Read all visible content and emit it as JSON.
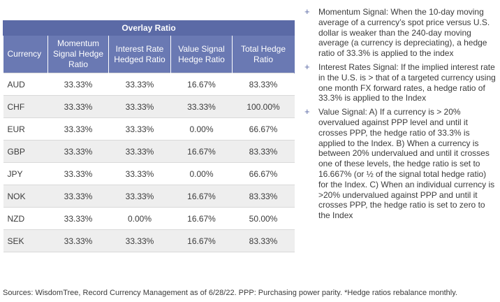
{
  "table": {
    "title": "Overlay Ratio",
    "headers": [
      "Currency",
      "Momentum Signal Hedge Ratio",
      "Interest Rate Hedged Ratio",
      "Value Signal Hedge Ratio",
      "Total Hedge Ratio"
    ],
    "rows": [
      [
        "AUD",
        "33.33%",
        "33.33%",
        "16.67%",
        "83.33%"
      ],
      [
        "CHF",
        "33.33%",
        "33.33%",
        "33.33%",
        "100.00%"
      ],
      [
        "EUR",
        "33.33%",
        "33.33%",
        "0.00%",
        "66.67%"
      ],
      [
        "GBP",
        "33.33%",
        "33.33%",
        "16.67%",
        "83.33%"
      ],
      [
        "JPY",
        "33.33%",
        "33.33%",
        "0.00%",
        "66.67%"
      ],
      [
        "NOK",
        "33.33%",
        "33.33%",
        "16.67%",
        "83.33%"
      ],
      [
        "NZD",
        "33.33%",
        "0.00%",
        "16.67%",
        "50.00%"
      ],
      [
        "SEK",
        "33.33%",
        "33.33%",
        "16.67%",
        "83.33%"
      ]
    ]
  },
  "notes": [
    "Momentum Signal: When the 10-day moving average of a currency’s spot price versus U.S. dollar is weaker than the 240-day moving average (a currency is depreciating), a hedge ratio of 33.3% is applied to the index",
    "Interest Rates Signal: If the implied interest rate in the U.S. is > that of a targeted currency using one month FX forward rates, a hedge ratio of 33.3% is applied to the Index",
    "Value Signal: A) If a currency is > 20% overvalued against PPP level and until it crosses PPP, the hedge ratio of 33.3% is applied to the Index. B) When a currency is between 20% undervalued and until it crosses one of these levels, the hedge ratio is set to 16.667% (or ½ of the signal total hedge ratio) for the Index. C) When an individual currency is >20% undervalued against PPP and until it crosses PPP, the hedge ratio is set to zero to the Index"
  ],
  "footer": "Sources: WisdomTree, Record Currency Management as of 6/28/22. PPP: Purchasing power parity. *Hedge ratios rebalance monthly.",
  "colors": {
    "title_bg": "#5b6aa6",
    "header_bg": "#6a79b3",
    "stripe": "#eeeeee"
  }
}
